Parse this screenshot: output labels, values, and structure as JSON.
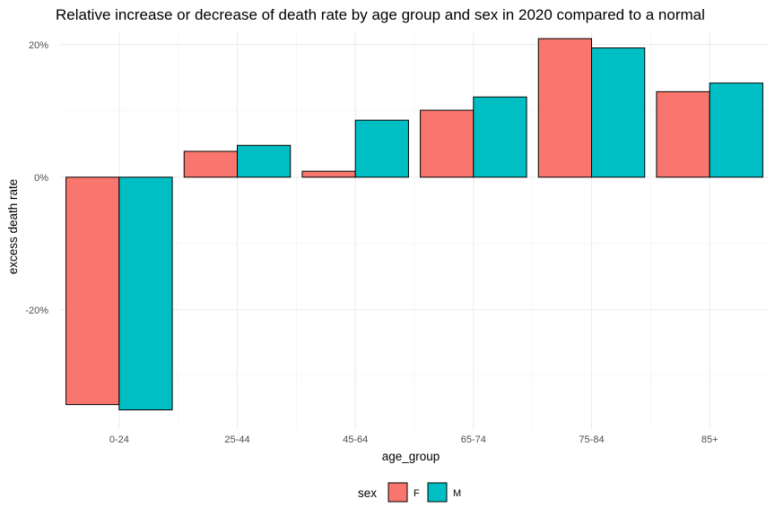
{
  "chart_data": {
    "type": "bar",
    "title": "Relative increase or decrease of death rate by age group and sex in 2020 compared to a normal",
    "xlabel": "age_group",
    "ylabel": "excess death rate",
    "categories": [
      "0-24",
      "25-44",
      "45-64",
      "65-74",
      "75-84",
      "85+"
    ],
    "series": [
      {
        "name": "F",
        "color": "#F8766D",
        "values": [
          -0.343,
          0.039,
          0.009,
          0.101,
          0.209,
          0.129
        ]
      },
      {
        "name": "M",
        "color": "#00BFC4",
        "values": [
          -0.351,
          0.048,
          0.086,
          0.121,
          0.195,
          0.142
        ]
      }
    ],
    "ylim": [
      -0.38,
      0.22
    ],
    "y_ticks": [
      {
        "value": -0.2,
        "label": "-20%"
      },
      {
        "value": 0.0,
        "label": "0%"
      },
      {
        "value": 0.2,
        "label": "20%"
      }
    ],
    "y_minor_ticks": [
      -0.3,
      -0.1,
      0.1
    ],
    "grid": true,
    "legend": {
      "title": "sex",
      "position": "bottom"
    }
  }
}
